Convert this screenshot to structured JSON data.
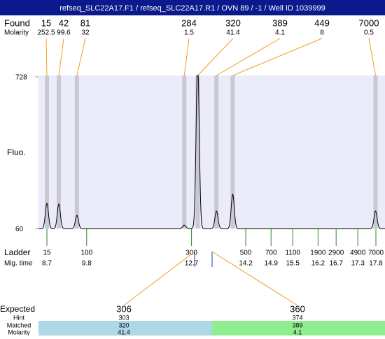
{
  "title": "refseq_SLC22A17.F1 / refseq_SLC22A17.R1 / OVN 89 / -1 / Well ID 1039999",
  "found": {
    "label": "Found",
    "molarity_label": "Molarity",
    "peaks": [
      {
        "size": 15,
        "molarity": 252.5,
        "time": 8.7,
        "height": 171
      },
      {
        "size": 42,
        "molarity": 99.6,
        "time": 9.03,
        "height": 168
      },
      {
        "size": 81,
        "molarity": 32,
        "time": 9.53,
        "height": 118
      },
      {
        "size": 284,
        "molarity": 1.5,
        "time": 12.5,
        "height": 75
      },
      {
        "size": 320,
        "molarity": 41.4,
        "time": 12.87,
        "height": 800
      },
      {
        "size": 389,
        "molarity": 4.1,
        "time": 13.39,
        "height": 137
      },
      {
        "size": 449,
        "molarity": 8,
        "time": 13.84,
        "height": 211
      },
      {
        "size": 7000,
        "molarity": 0.5,
        "time": 17.79,
        "height": 137
      }
    ]
  },
  "plot": {
    "y_label": "Fluo.",
    "ylim": [
      60,
      728
    ],
    "yticks": [
      728,
      60
    ]
  },
  "ladder": {
    "label": "Ladder",
    "time_label": "Mig. time",
    "sizes": [
      15,
      100,
      300,
      500,
      700,
      1100,
      1900,
      2900,
      4900,
      7000
    ],
    "times": [
      8.7,
      9.8,
      12.7,
      14.2,
      14.9,
      15.5,
      16.2,
      16.7,
      17.3,
      17.8
    ]
  },
  "expected": {
    "label": "Expected",
    "hint_label": "Hint",
    "matched_label": "Matched",
    "molarity_label": "Molarity",
    "items": [
      {
        "size": 306,
        "hint": 303,
        "matched": 320,
        "molarity": 41.4
      },
      {
        "size": 360,
        "hint": 374,
        "matched": 389,
        "molarity": 4.1
      }
    ]
  }
}
